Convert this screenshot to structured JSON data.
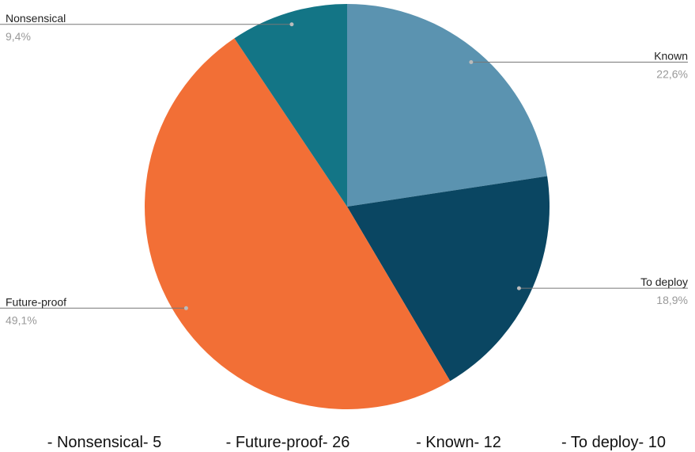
{
  "chart_data": {
    "type": "pie",
    "categories": [
      "Known",
      "To deploy",
      "Future-proof",
      "Nonsensical"
    ],
    "values": [
      22.6,
      18.9,
      49.1,
      9.4
    ],
    "value_labels": [
      "22,6%",
      "18,9%",
      "49,1%",
      "9,4%"
    ],
    "colors": [
      "#5b93b0",
      "#0a4662",
      "#f26f36",
      "#137586"
    ],
    "footnote": [
      "- Nonsensical- 5",
      "- Future-proof- 26",
      "- Known- 12",
      "- To deploy- 10"
    ]
  }
}
